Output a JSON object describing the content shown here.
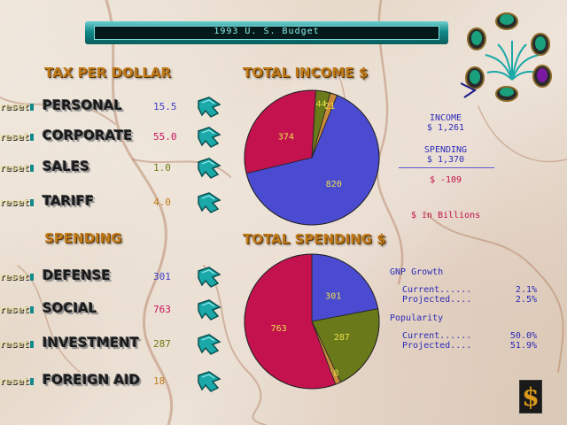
{
  "title": "1993 U. S. Budget",
  "tax_section": {
    "heading": "TAX PER DOLLAR",
    "rows": [
      {
        "reset": "reset",
        "label": "PERSONAL",
        "value": "15.5",
        "color": "#3c3cc8"
      },
      {
        "reset": "reset",
        "label": "CORPORATE",
        "value": "55.0",
        "color": "#c8145a"
      },
      {
        "reset": "reset",
        "label": "SALES",
        "value": "1.0",
        "color": "#6f7a12"
      },
      {
        "reset": "reset",
        "label": "TARIFF",
        "value": "4.0",
        "color": "#c07a18"
      }
    ]
  },
  "spending_section": {
    "heading": "SPENDING",
    "rows": [
      {
        "reset": "reset",
        "label": "DEFENSE",
        "value": "301",
        "color": "#3c3cc8"
      },
      {
        "reset": "reset",
        "label": "SOCIAL",
        "value": "763",
        "color": "#c8145a"
      },
      {
        "reset": "reset",
        "label": "INVESTMENT",
        "value": "287",
        "color": "#6f7a12"
      },
      {
        "reset": "reset",
        "label": "FOREIGN AID",
        "value": "18",
        "color": "#c07a18"
      }
    ]
  },
  "income_chart": {
    "heading": "TOTAL INCOME $",
    "slices": [
      {
        "label": "820",
        "value": 820,
        "color": "#4b4bd2"
      },
      {
        "label": "374",
        "value": 374,
        "color": "#c4124f"
      },
      {
        "label": "44",
        "value": 44,
        "color": "#6a7a1a"
      },
      {
        "label": "21",
        "value": 21,
        "color": "#c78b3a"
      }
    ]
  },
  "spending_chart": {
    "heading": "TOTAL SPENDING $",
    "slices": [
      {
        "label": "301",
        "value": 301,
        "color": "#4b4bd2"
      },
      {
        "label": "287",
        "value": 287,
        "color": "#6a7a1a"
      },
      {
        "label": "18",
        "value": 18,
        "color": "#c78b3a"
      },
      {
        "label": "763",
        "value": 763,
        "color": "#c4124f"
      }
    ]
  },
  "summary": {
    "income_label": "INCOME",
    "income_value": "$ 1,261",
    "spending_label": "SPENDING",
    "spending_value": "$ 1,370",
    "deficit_value": "$ -109",
    "units": "$ in Billions"
  },
  "gnp": {
    "heading": "GNP Growth",
    "current_label": "Current......",
    "current_value": "2.1%",
    "projected_label": "Projected....",
    "projected_value": "2.5%"
  },
  "popularity": {
    "heading": "Popularity",
    "current_label": "Current......",
    "current_value": "50.0%",
    "projected_label": "Projected....",
    "projected_value": "51.9%"
  },
  "colors": {
    "summary_blue": "#2a2ab8",
    "summary_red": "#c0104a",
    "arrow_teal": "#1aa8a8",
    "heading_gold": "#c07a18"
  },
  "icons": {
    "dollar": "$"
  }
}
